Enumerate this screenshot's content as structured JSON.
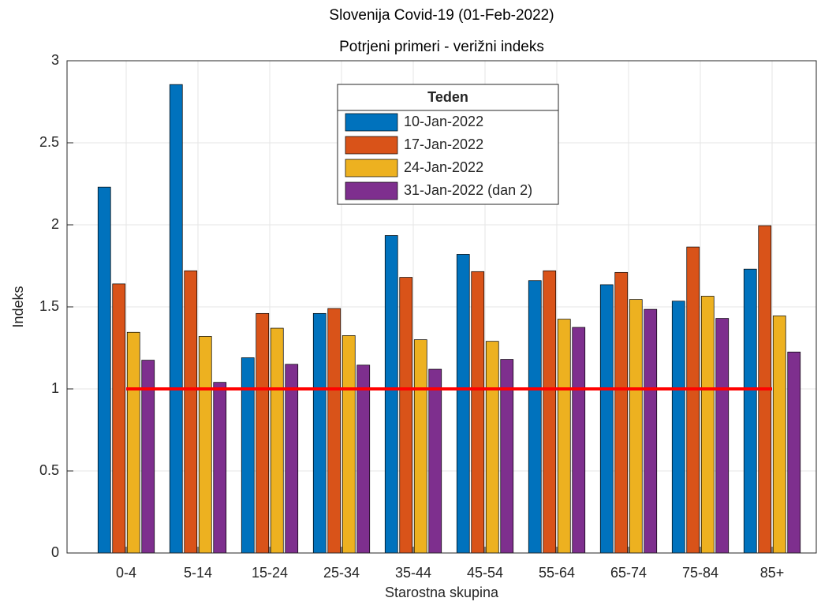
{
  "chart_data": {
    "type": "bar",
    "title": "Slovenija Covid-19 (01-Feb-2022)",
    "subtitle": "Potrjeni primeri - verižni indeks",
    "xlabel": "Starostna skupina",
    "ylabel": "Indeks",
    "categories": [
      "0-4",
      "5-14",
      "15-24",
      "25-34",
      "35-44",
      "45-54",
      "55-64",
      "65-74",
      "75-84",
      "85+"
    ],
    "series": [
      {
        "name": "10-Jan-2022",
        "color": "#0072BD",
        "values": [
          2.23,
          2.855,
          1.19,
          1.46,
          1.935,
          1.82,
          1.66,
          1.635,
          1.535,
          1.73
        ]
      },
      {
        "name": "17-Jan-2022",
        "color": "#D95319",
        "values": [
          1.64,
          1.72,
          1.46,
          1.49,
          1.68,
          1.715,
          1.72,
          1.71,
          1.865,
          1.995
        ]
      },
      {
        "name": "24-Jan-2022",
        "color": "#EDB120",
        "values": [
          1.345,
          1.32,
          1.37,
          1.325,
          1.3,
          1.29,
          1.425,
          1.545,
          1.565,
          1.445
        ]
      },
      {
        "name": "31-Jan-2022 (dan 2)",
        "color": "#7E2F8E",
        "values": [
          1.175,
          1.04,
          1.15,
          1.145,
          1.12,
          1.18,
          1.375,
          1.485,
          1.43,
          1.225
        ]
      }
    ],
    "legend_title": "Teden",
    "reference_line": {
      "value": 1,
      "color": "#FF0000"
    },
    "ylim": [
      0,
      3
    ],
    "yticks": [
      0,
      0.5,
      1,
      1.5,
      2,
      2.5,
      3
    ],
    "grid": true
  }
}
